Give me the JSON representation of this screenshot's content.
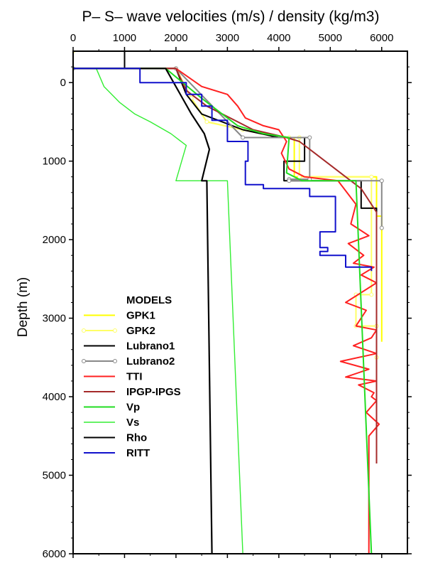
{
  "chart_data": {
    "type": "line",
    "title": "P– S– wave velocities (m/s) / density (kg/m3)",
    "xlabel": "",
    "ylabel": "Depth (m)",
    "xlim": [
      0,
      6500
    ],
    "ylim": [
      -400,
      6000
    ],
    "y_inverted": true,
    "x_ticks": [
      0,
      1000,
      2000,
      3000,
      4000,
      5000,
      6000
    ],
    "y_ticks": [
      0,
      1000,
      2000,
      3000,
      4000,
      5000,
      6000
    ],
    "x_axis_position": "top",
    "grid": false,
    "legend": {
      "title": "MODELS",
      "position": "bottom-left"
    },
    "series": [
      {
        "name": "GPK1",
        "color": "#ffff00",
        "marker": "none",
        "x": [
          0,
          0,
          2000,
          2300,
          2600,
          3300,
          4000,
          4300,
          4300,
          5900,
          5900,
          6000,
          6000
        ],
        "y": [
          -400,
          -180,
          -180,
          200,
          500,
          600,
          700,
          700,
          1200,
          1200,
          1700,
          1700,
          3300
        ]
      },
      {
        "name": "GPK2",
        "color": "#ffff66",
        "marker": "circle",
        "x": [
          0,
          0,
          2000,
          2300,
          2600,
          3300,
          4200,
          4400,
          4400,
          5800,
          5800,
          5500,
          5500,
          5900,
          5900
        ],
        "y": [
          -400,
          -180,
          -180,
          200,
          500,
          600,
          700,
          700,
          1200,
          1200,
          2700,
          2700,
          3100,
          3100,
          3500
        ]
      },
      {
        "name": "Lubrano1",
        "color": "#000000",
        "marker": "none",
        "x": [
          1000,
          1000,
          2000,
          2200,
          2500,
          3300,
          4000,
          4500,
          4500,
          4100,
          4100,
          5600,
          5600,
          5900,
          5900
        ],
        "y": [
          -400,
          -180,
          -180,
          150,
          400,
          600,
          700,
          700,
          1000,
          1000,
          1250,
          1250,
          1600,
          1600,
          4850
        ]
      },
      {
        "name": "Lubrano2",
        "color": "#888888",
        "marker": "circle",
        "x": [
          0,
          2000,
          3300,
          4600,
          4600,
          4200,
          4200,
          6000,
          6000
        ],
        "y": [
          -180,
          -180,
          700,
          700,
          1230,
          1230,
          1250,
          1250,
          1850
        ]
      },
      {
        "name": "TTI",
        "color": "#ff2020",
        "marker": "none",
        "x": [
          0,
          0,
          2000,
          2500,
          3000,
          3200,
          3350,
          3700,
          4000,
          4150,
          4050,
          4200,
          4500,
          5150,
          5500,
          5400,
          5750,
          5350,
          5650,
          5450,
          5850,
          5600,
          5900,
          5300,
          5700,
          5500,
          5900,
          5800,
          5450,
          5900,
          5200,
          5750,
          5300,
          5900,
          5550,
          5850,
          5800,
          5900,
          5700,
          5950,
          5750,
          5750
        ],
        "y": [
          -400,
          -180,
          -180,
          50,
          150,
          300,
          450,
          550,
          600,
          750,
          900,
          1100,
          1200,
          1250,
          1550,
          1800,
          1950,
          2050,
          2200,
          2300,
          2350,
          2450,
          2550,
          2800,
          2900,
          3100,
          3150,
          3250,
          3350,
          3450,
          3550,
          3650,
          3750,
          3800,
          3850,
          3950,
          4000,
          4050,
          4200,
          4350,
          4500,
          6000
        ]
      },
      {
        "name": "IPGP-IPGS",
        "color": "#a52a2a",
        "marker": "none",
        "x": [
          0,
          2000,
          2200,
          2600,
          3200,
          3500,
          4150,
          4400,
          4700,
          5000,
          5300,
          5600,
          5900,
          5900
        ],
        "y": [
          -180,
          -180,
          100,
          300,
          500,
          600,
          700,
          750,
          900,
          1050,
          1200,
          1350,
          1650,
          4850
        ]
      },
      {
        "name": "Vp",
        "color": "#22dd22",
        "marker": "none",
        "x": [
          0,
          0,
          1800,
          2500,
          2900,
          3200,
          3700,
          4200,
          4150,
          4450,
          5500,
          5800
        ],
        "y": [
          -400,
          -180,
          -180,
          200,
          400,
          550,
          650,
          700,
          1150,
          1250,
          1250,
          6000
        ]
      },
      {
        "name": "Vs",
        "color": "#33ee33",
        "marker": "dot",
        "x": [
          0,
          450,
          600,
          900,
          1200,
          1500,
          1900,
          2200,
          2000,
          2250,
          3000,
          3300
        ],
        "y": [
          -180,
          -180,
          50,
          250,
          400,
          500,
          650,
          800,
          1250,
          1250,
          1250,
          6000
        ]
      },
      {
        "name": "Rho",
        "color": "#000000",
        "marker": "none",
        "x": [
          0,
          1800,
          2300,
          2550,
          2650,
          2500,
          2600,
          2700
        ],
        "y": [
          -180,
          -180,
          400,
          650,
          850,
          1250,
          1250,
          6000
        ]
      },
      {
        "name": "RITT",
        "color": "#1111cc",
        "marker": "none",
        "x": [
          0,
          0,
          1300,
          1300,
          2200,
          2200,
          2500,
          2500,
          2700,
          2700,
          3000,
          3000,
          3400,
          3400,
          3350,
          3350,
          3700,
          3700,
          4600,
          4600,
          5100,
          5100,
          4800,
          4800,
          4950,
          4950,
          4800,
          4800,
          5300,
          5300,
          5800,
          5800
        ],
        "y": [
          -400,
          -180,
          -180,
          0,
          0,
          150,
          150,
          300,
          300,
          480,
          480,
          750,
          750,
          1000,
          1000,
          1300,
          1300,
          1350,
          1350,
          1450,
          1450,
          1900,
          1900,
          2100,
          2100,
          2150,
          2150,
          2200,
          2200,
          2350,
          2350,
          2400
        ]
      }
    ]
  }
}
